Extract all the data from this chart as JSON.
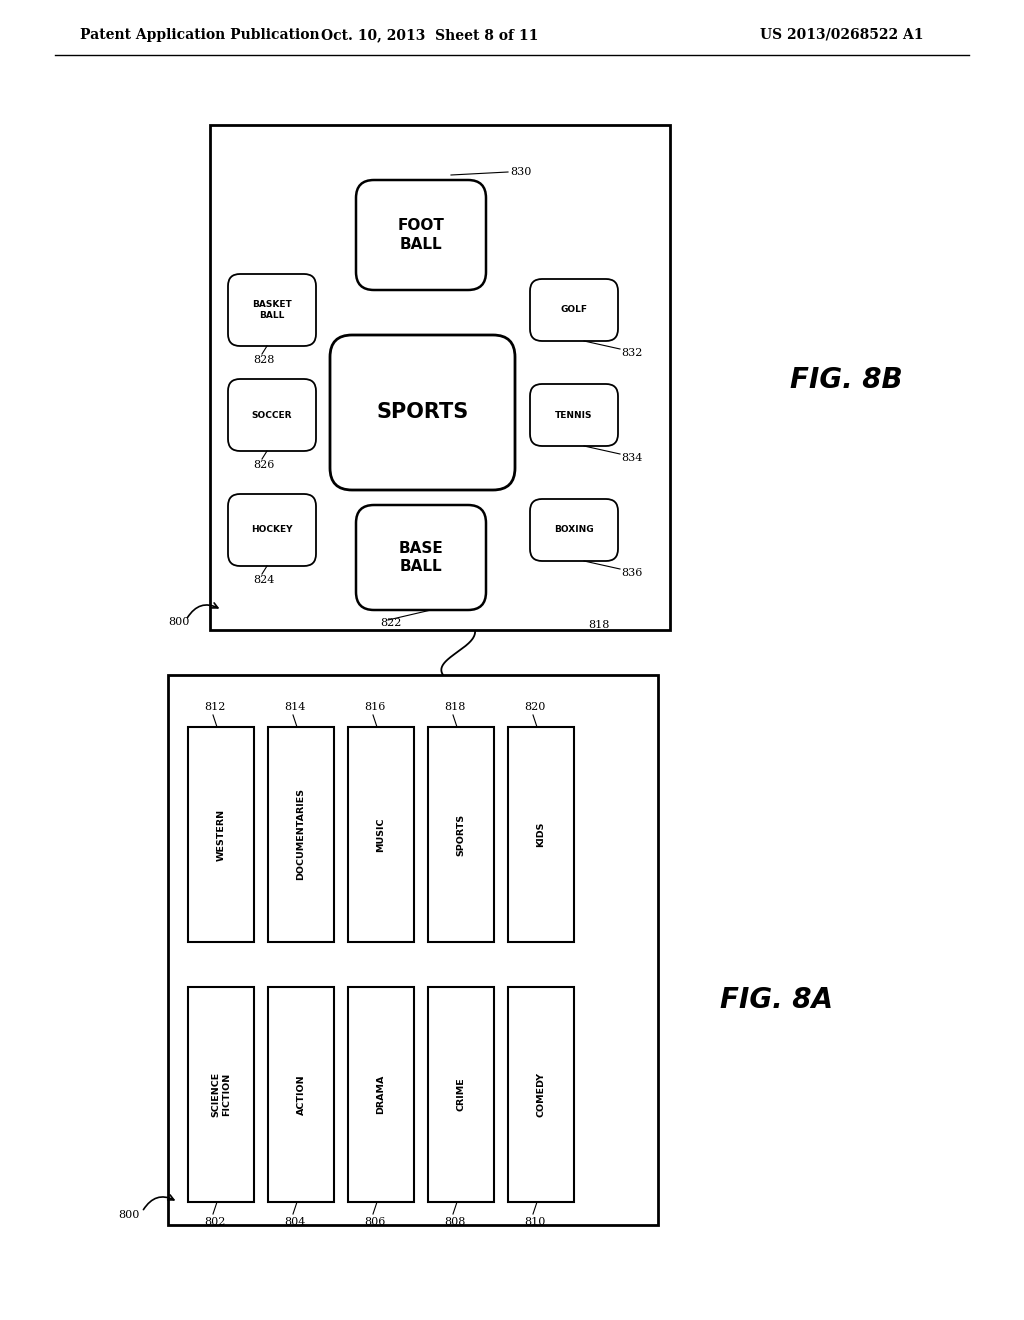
{
  "header_left": "Patent Application Publication",
  "header_mid": "Oct. 10, 2013  Sheet 8 of 11",
  "header_right": "US 2013/0268522 A1",
  "fig_a_label": "FIG. 8A",
  "fig_b_label": "FIG. 8B",
  "background_color": "#ffffff"
}
